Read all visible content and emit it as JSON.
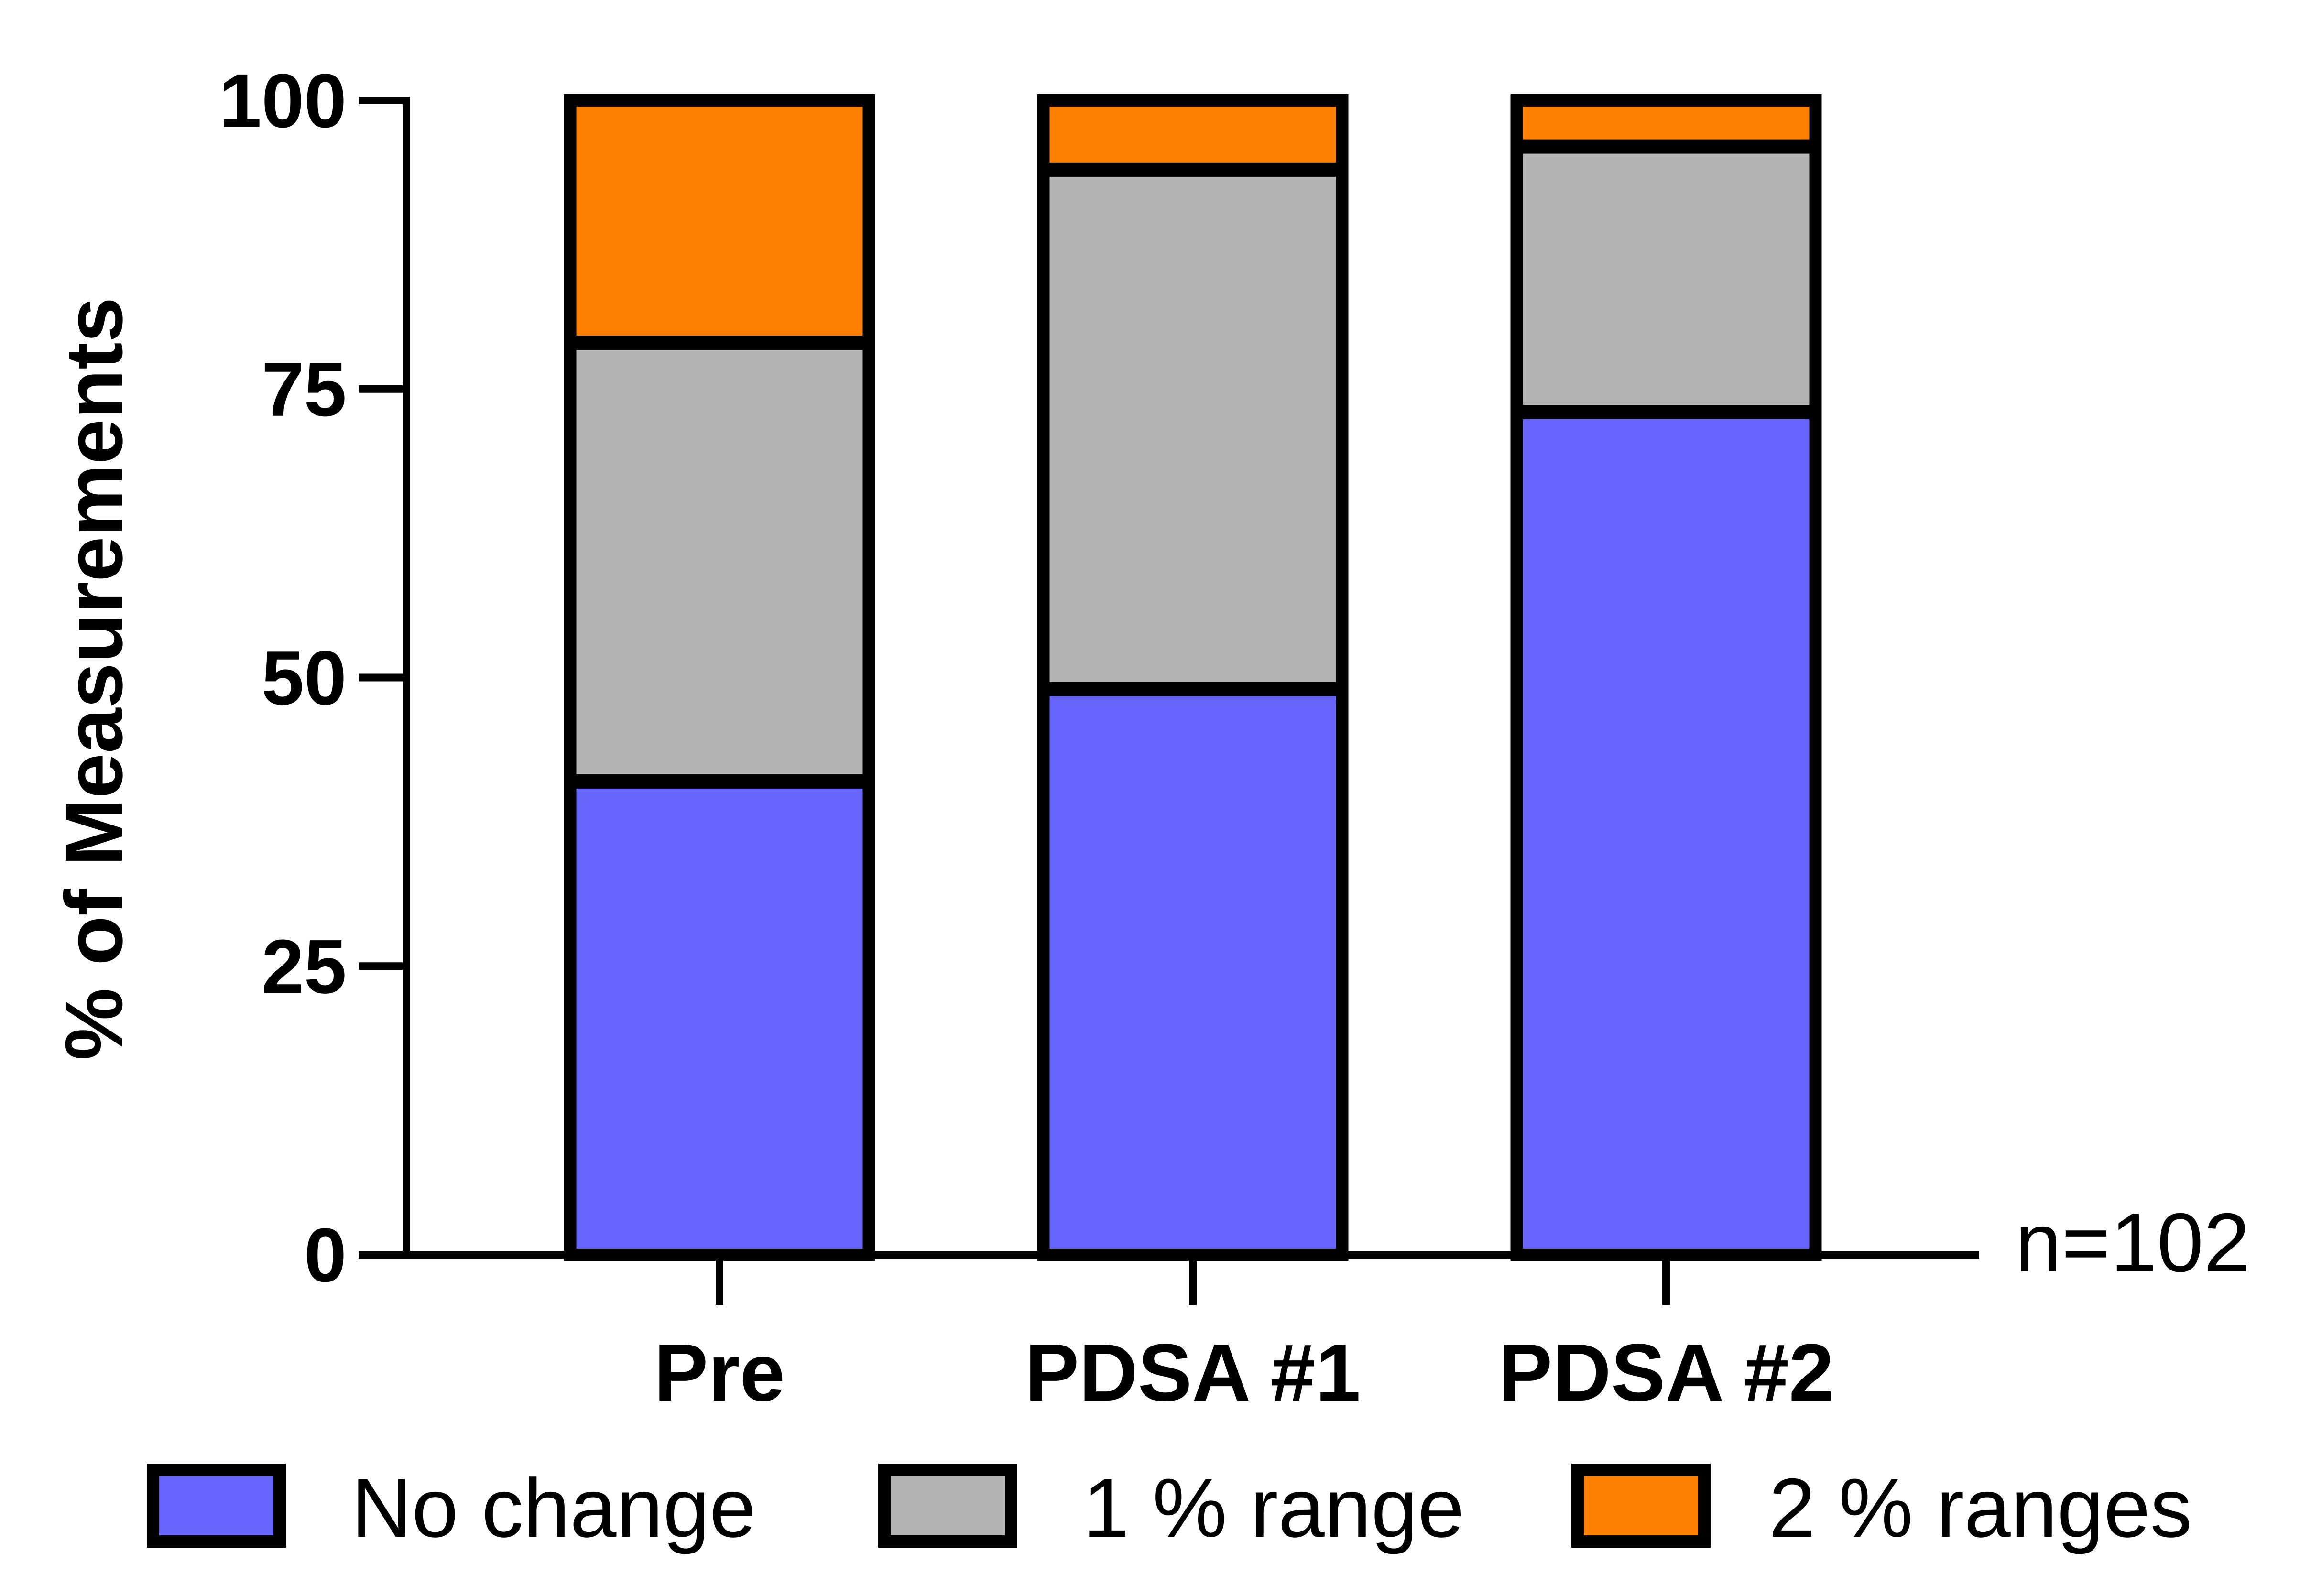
{
  "chart_data": {
    "type": "bar",
    "stacked": true,
    "categories": [
      "Pre",
      "PDSA #1",
      "PDSA #2"
    ],
    "series": [
      {
        "name": "No change",
        "color": "#6666ff",
        "values": [
          41,
          49,
          73
        ]
      },
      {
        "name": "1 % range",
        "color": "#b3b3b3",
        "values": [
          38,
          45,
          23
        ]
      },
      {
        "name": "2 % ranges",
        "color": "#ff8000",
        "values": [
          21,
          6,
          4
        ]
      }
    ],
    "ylabel": "% of Measurements",
    "xlabel": "",
    "ylim": [
      0,
      100
    ],
    "yticks": [
      "0",
      "25",
      "50",
      "75",
      "100"
    ],
    "annotation": "n=102",
    "legend_position": "bottom",
    "grid": false
  }
}
